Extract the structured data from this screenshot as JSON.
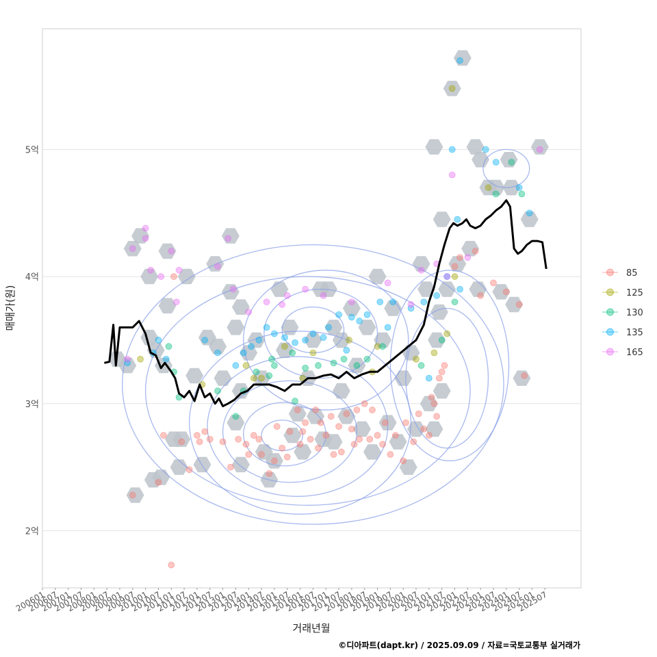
{
  "chart_data": {
    "type": "scatter",
    "title": "",
    "xlabel": "거래년월",
    "ylabel": "매매가(원)",
    "caption": "©디아파트(dapt.kr) / 2025.09.09 / 자료=국토교통부 실거래가",
    "ylim": [
      1.55,
      5.95
    ],
    "y_ticks": [
      {
        "value": 2,
        "label": "2억"
      },
      {
        "value": 3,
        "label": "3억"
      },
      {
        "value": 4,
        "label": "4억"
      },
      {
        "value": 5,
        "label": "5억"
      }
    ],
    "x_ticks": [
      "200601",
      "200607",
      "200701",
      "200707",
      "200801",
      "200807",
      "200901",
      "200907",
      "201001",
      "201007",
      "201101",
      "201107",
      "201201",
      "201207",
      "201301",
      "201307",
      "201401",
      "201407",
      "201501",
      "201507",
      "201601",
      "201607",
      "201701",
      "201707",
      "201801",
      "201807",
      "201901",
      "201907",
      "202001",
      "202007",
      "202101",
      "202107",
      "202201",
      "202207",
      "202301",
      "202307",
      "202401",
      "202407",
      "202501",
      "202507"
    ],
    "legend": [
      {
        "label": "85",
        "color": "#F8766D"
      },
      {
        "label": "125",
        "color": "#A3A500"
      },
      {
        "label": "130",
        "color": "#00BF7D"
      },
      {
        "label": "135",
        "color": "#00B0F6"
      },
      {
        "label": "165",
        "color": "#E76BF3"
      }
    ],
    "median_line": {
      "color": "#000000",
      "x": [
        2008.4,
        2008.6,
        2008.75,
        2008.85,
        2009.0,
        2009.2,
        2009.5,
        2009.75,
        2010.0,
        2010.2,
        2010.4,
        2010.6,
        2010.75,
        2011.0,
        2011.15,
        2011.3,
        2011.5,
        2011.7,
        2011.9,
        2012.1,
        2012.3,
        2012.5,
        2012.7,
        2012.85,
        2013.0,
        2013.2,
        2013.45,
        2013.7,
        2013.95,
        2014.2,
        2014.5,
        2014.8,
        2015.1,
        2015.4,
        2015.7,
        2016.0,
        2016.3,
        2016.6,
        2016.9,
        2017.2,
        2017.5,
        2017.8,
        2018.1,
        2018.4,
        2018.7,
        2019.0,
        2019.3,
        2019.6,
        2019.9,
        2020.2,
        2020.5,
        2020.8,
        2021.0,
        2021.2,
        2021.4,
        2021.6,
        2021.8,
        2021.95,
        2022.1,
        2022.3,
        2022.45,
        2022.6,
        2022.8,
        2023.0,
        2023.2,
        2023.4,
        2023.6,
        2023.8,
        2024.0,
        2024.15,
        2024.3,
        2024.45,
        2024.6,
        2024.8,
        2025.0,
        2025.2,
        2025.4,
        2025.55
      ],
      "y": [
        3.32,
        3.33,
        3.62,
        3.3,
        3.6,
        3.6,
        3.6,
        3.65,
        3.55,
        3.4,
        3.38,
        3.28,
        3.32,
        3.25,
        3.2,
        3.08,
        3.05,
        3.1,
        3.02,
        3.15,
        3.05,
        3.08,
        3.0,
        3.04,
        2.98,
        3.0,
        3.03,
        3.08,
        3.1,
        3.15,
        3.15,
        3.15,
        3.13,
        3.1,
        3.15,
        3.15,
        3.2,
        3.2,
        3.22,
        3.23,
        3.2,
        3.25,
        3.2,
        3.23,
        3.25,
        3.25,
        3.3,
        3.35,
        3.4,
        3.45,
        3.5,
        3.62,
        3.8,
        3.92,
        4.1,
        4.25,
        4.38,
        4.42,
        4.4,
        4.42,
        4.45,
        4.4,
        4.38,
        4.4,
        4.45,
        4.48,
        4.52,
        4.55,
        4.6,
        4.55,
        4.22,
        4.18,
        4.2,
        4.25,
        4.28,
        4.28,
        4.27,
        4.06
      ]
    },
    "hexbins": [
      [
        2008.9,
        3.35
      ],
      [
        2009.3,
        3.3
      ],
      [
        2009.5,
        4.22
      ],
      [
        2009.6,
        2.28
      ],
      [
        2009.8,
        4.32
      ],
      [
        2010.15,
        4.0
      ],
      [
        2010.15,
        3.52
      ],
      [
        2010.4,
        3.42
      ],
      [
        2010.7,
        3.3
      ],
      [
        2010.3,
        2.4
      ],
      [
        2010.6,
        2.42
      ],
      [
        2010.85,
        4.2
      ],
      [
        2010.85,
        3.77
      ],
      [
        2011.1,
        2.72
      ],
      [
        2011.4,
        2.72
      ],
      [
        2011.3,
        2.5
      ],
      [
        2011.6,
        4.0
      ],
      [
        2011.9,
        3.22
      ],
      [
        2012.2,
        2.52
      ],
      [
        2012.4,
        3.52
      ],
      [
        2012.7,
        4.1
      ],
      [
        2012.8,
        3.45
      ],
      [
        2013.0,
        3.2
      ],
      [
        2013.3,
        4.32
      ],
      [
        2013.3,
        3.88
      ],
      [
        2013.5,
        3.6
      ],
      [
        2013.7,
        3.76
      ],
      [
        2013.7,
        3.1
      ],
      [
        2013.5,
        2.85
      ],
      [
        2013.7,
        2.52
      ],
      [
        2014.0,
        3.4
      ],
      [
        2014.3,
        3.5
      ],
      [
        2014.5,
        3.2
      ],
      [
        2014.6,
        2.62
      ],
      [
        2014.8,
        2.4
      ],
      [
        2015.0,
        2.55
      ],
      [
        2015.2,
        3.9
      ],
      [
        2015.4,
        3.42
      ],
      [
        2015.6,
        3.6
      ],
      [
        2015.7,
        2.75
      ],
      [
        2015.9,
        2.92
      ],
      [
        2016.1,
        2.62
      ],
      [
        2016.3,
        3.2
      ],
      [
        2016.5,
        3.5
      ],
      [
        2016.6,
        2.9
      ],
      [
        2016.8,
        3.9
      ],
      [
        2016.9,
        2.72
      ],
      [
        2017.1,
        3.9
      ],
      [
        2017.3,
        3.6
      ],
      [
        2017.3,
        2.7
      ],
      [
        2017.6,
        3.5
      ],
      [
        2017.6,
        3.1
      ],
      [
        2017.8,
        2.9
      ],
      [
        2018.0,
        3.75
      ],
      [
        2018.2,
        3.3
      ],
      [
        2018.4,
        2.8
      ],
      [
        2018.6,
        3.6
      ],
      [
        2018.8,
        2.62
      ],
      [
        2019.0,
        4.0
      ],
      [
        2019.2,
        3.5
      ],
      [
        2019.4,
        2.85
      ],
      [
        2019.6,
        3.75
      ],
      [
        2019.8,
        2.7
      ],
      [
        2020.0,
        3.2
      ],
      [
        2020.2,
        2.5
      ],
      [
        2020.3,
        3.4
      ],
      [
        2020.5,
        2.8
      ],
      [
        2020.7,
        4.1
      ],
      [
        2020.9,
        3.9
      ],
      [
        2021.0,
        3.0
      ],
      [
        2021.2,
        2.8
      ],
      [
        2021.3,
        3.5
      ],
      [
        2021.4,
        3.72
      ],
      [
        2021.5,
        3.1
      ],
      [
        2021.2,
        5.02
      ],
      [
        2021.5,
        4.45
      ],
      [
        2021.7,
        3.9
      ],
      [
        2021.9,
        5.48
      ],
      [
        2022.1,
        4.1
      ],
      [
        2022.3,
        5.72
      ],
      [
        2022.6,
        4.22
      ],
      [
        2022.8,
        5.02
      ],
      [
        2022.9,
        3.9
      ],
      [
        2023.0,
        4.92
      ],
      [
        2023.3,
        4.7
      ],
      [
        2023.6,
        4.7
      ],
      [
        2023.8,
        3.88
      ],
      [
        2024.1,
        4.92
      ],
      [
        2024.2,
        4.7
      ],
      [
        2024.3,
        3.78
      ],
      [
        2024.6,
        3.2
      ],
      [
        2024.9,
        4.45
      ],
      [
        2025.3,
        5.02
      ]
    ],
    "contours": [
      {
        "cx": 2016.0,
        "cy": 2.85,
        "rx": 4.3,
        "ry": 0.72
      },
      {
        "cx": 2015.9,
        "cy": 2.82,
        "rx": 3.5,
        "ry": 0.55
      },
      {
        "cx": 2015.6,
        "cy": 2.78,
        "rx": 2.6,
        "ry": 0.4
      },
      {
        "cx": 2015.4,
        "cy": 2.76,
        "rx": 1.6,
        "ry": 0.25
      },
      {
        "cx": 2015.3,
        "cy": 2.75,
        "rx": 0.8,
        "ry": 0.12
      },
      {
        "cx": 2017.0,
        "cy": 3.5,
        "rx": 3.2,
        "ry": 0.55
      },
      {
        "cx": 2016.8,
        "cy": 3.55,
        "rx": 2.2,
        "ry": 0.35
      },
      {
        "cx": 2016.5,
        "cy": 3.58,
        "rx": 1.2,
        "ry": 0.18
      },
      {
        "cx": 2024.0,
        "cy": 4.85,
        "rx": 0.9,
        "ry": 0.15
      },
      {
        "cx": 2016.5,
        "cy": 3.15,
        "rx": 7.4,
        "ry": 1.1
      },
      {
        "cx": 2016.3,
        "cy": 3.1,
        "rx": 6.3,
        "ry": 0.9
      },
      {
        "cx": 2021.7,
        "cy": 3.2,
        "rx": 1.6,
        "ry": 0.55
      },
      {
        "cx": 2021.8,
        "cy": 3.3,
        "rx": 2.3,
        "ry": 0.75
      }
    ],
    "points": {
      "85": [
        [
          2021.1,
          3.05
        ],
        [
          2021.2,
          3.0
        ],
        [
          2021.4,
          3.2
        ],
        [
          2021.5,
          3.25
        ],
        [
          2021.6,
          3.3
        ],
        [
          2022.0,
          4.08
        ],
        [
          2022.2,
          4.15
        ],
        [
          2011.1,
          4.0
        ],
        [
          2010.5,
          2.38
        ],
        [
          2011.7,
          2.48
        ],
        [
          2013.3,
          2.5
        ],
        [
          2011.0,
          1.73
        ],
        [
          2009.5,
          2.28
        ],
        [
          2024.7,
          3.22
        ],
        [
          2024.5,
          3.78
        ],
        [
          2024.0,
          3.88
        ],
        [
          2023.5,
          3.95
        ],
        [
          2023.0,
          3.85
        ],
        [
          2022.8,
          4.2
        ],
        [
          2012.0,
          2.75
        ],
        [
          2012.5,
          2.72
        ],
        [
          2013.0,
          2.7
        ],
        [
          2020.0,
          2.55
        ],
        [
          2020.4,
          2.7
        ],
        [
          2019.5,
          2.6
        ],
        [
          2019.3,
          2.85
        ],
        [
          2019.0,
          2.75
        ],
        [
          2018.7,
          2.72
        ],
        [
          2018.5,
          3.0
        ],
        [
          2018.2,
          2.95
        ],
        [
          2018.0,
          2.8
        ],
        [
          2017.6,
          2.62
        ],
        [
          2017.3,
          2.6
        ],
        [
          2017.0,
          2.75
        ],
        [
          2016.6,
          2.95
        ],
        [
          2016.2,
          2.85
        ],
        [
          2015.9,
          2.95
        ],
        [
          2015.6,
          2.78
        ],
        [
          2015.3,
          2.65
        ],
        [
          2015.0,
          2.55
        ],
        [
          2014.8,
          2.45
        ],
        [
          2014.5,
          2.6
        ],
        [
          2014.2,
          2.75
        ],
        [
          2013.9,
          2.68
        ],
        [
          2013.6,
          2.72
        ],
        [
          2012.3,
          2.78
        ],
        [
          2012.1,
          2.7
        ],
        [
          2011.4,
          2.7
        ],
        [
          2010.7,
          2.75
        ],
        [
          2016.0,
          2.68
        ],
        [
          2016.4,
          2.72
        ],
        [
          2016.8,
          2.85
        ],
        [
          2017.2,
          2.9
        ],
        [
          2017.8,
          2.92
        ],
        [
          2018.3,
          2.72
        ],
        [
          2018.8,
          2.95
        ],
        [
          2019.2,
          2.68
        ],
        [
          2019.7,
          2.75
        ],
        [
          2020.1,
          2.85
        ],
        [
          2020.6,
          2.92
        ],
        [
          2020.8,
          2.8
        ],
        [
          2021.0,
          2.75
        ],
        [
          2021.3,
          2.9
        ],
        [
          2014.0,
          2.6
        ],
        [
          2014.4,
          2.72
        ],
        [
          2015.1,
          2.82
        ],
        [
          2015.5,
          2.58
        ],
        [
          2016.1,
          2.78
        ],
        [
          2016.7,
          2.65
        ],
        [
          2017.5,
          2.82
        ],
        [
          2018.1,
          2.68
        ]
      ],
      "125": [
        [
          2021.9,
          5.48
        ],
        [
          2023.3,
          4.7
        ],
        [
          2022.0,
          4.0
        ],
        [
          2021.7,
          3.55
        ],
        [
          2021.2,
          3.4
        ],
        [
          2020.5,
          3.35
        ],
        [
          2019.0,
          3.45
        ],
        [
          2018.8,
          3.25
        ],
        [
          2017.9,
          3.5
        ],
        [
          2016.5,
          3.4
        ],
        [
          2015.4,
          3.45
        ],
        [
          2014.5,
          3.2
        ],
        [
          2014.2,
          3.2
        ],
        [
          2012.2,
          3.15
        ],
        [
          2009.8,
          3.35
        ],
        [
          2016.1,
          3.2
        ],
        [
          2013.9,
          3.3
        ]
      ],
      "130": [
        [
          2024.2,
          4.9
        ],
        [
          2024.6,
          4.65
        ],
        [
          2023.6,
          4.65
        ],
        [
          2022.0,
          3.8
        ],
        [
          2021.5,
          3.5
        ],
        [
          2020.7,
          3.3
        ],
        [
          2019.2,
          3.45
        ],
        [
          2018.6,
          3.35
        ],
        [
          2018.2,
          3.3
        ],
        [
          2017.7,
          3.35
        ],
        [
          2016.7,
          3.3
        ],
        [
          2016.2,
          3.28
        ],
        [
          2015.7,
          3.4
        ],
        [
          2015.0,
          3.3
        ],
        [
          2014.8,
          3.22
        ],
        [
          2014.3,
          3.25
        ],
        [
          2013.8,
          3.1
        ],
        [
          2013.5,
          2.9
        ],
        [
          2012.8,
          3.1
        ],
        [
          2011.3,
          3.05
        ],
        [
          2011.1,
          3.25
        ],
        [
          2010.9,
          3.45
        ],
        [
          2015.8,
          3.02
        ],
        [
          2014.9,
          3.35
        ],
        [
          2017.3,
          3.32
        ]
      ],
      "135": [
        [
          2022.2,
          5.7
        ],
        [
          2021.9,
          5.0
        ],
        [
          2023.2,
          5.0
        ],
        [
          2023.6,
          4.9
        ],
        [
          2024.5,
          4.7
        ],
        [
          2024.9,
          4.5
        ],
        [
          2022.1,
          4.45
        ],
        [
          2022.2,
          3.9
        ],
        [
          2021.7,
          4.0
        ],
        [
          2021.3,
          3.85
        ],
        [
          2020.8,
          3.8
        ],
        [
          2020.3,
          3.75
        ],
        [
          2019.6,
          3.8
        ],
        [
          2019.1,
          3.8
        ],
        [
          2018.6,
          3.7
        ],
        [
          2018.3,
          3.65
        ],
        [
          2018.0,
          3.68
        ],
        [
          2017.5,
          3.7
        ],
        [
          2017.1,
          3.6
        ],
        [
          2016.5,
          3.55
        ],
        [
          2016.2,
          3.5
        ],
        [
          2015.8,
          3.48
        ],
        [
          2015.4,
          3.52
        ],
        [
          2015.0,
          3.55
        ],
        [
          2014.7,
          3.6
        ],
        [
          2014.4,
          3.5
        ],
        [
          2014.1,
          3.45
        ],
        [
          2013.8,
          3.4
        ],
        [
          2013.5,
          3.3
        ],
        [
          2012.8,
          3.4
        ],
        [
          2012.3,
          3.5
        ],
        [
          2010.5,
          3.5
        ],
        [
          2010.3,
          3.4
        ],
        [
          2010.8,
          3.35
        ],
        [
          2009.3,
          3.32
        ],
        [
          2021.0,
          3.2
        ],
        [
          2019.4,
          3.6
        ],
        [
          2017.8,
          3.42
        ],
        [
          2016.9,
          3.52
        ]
      ],
      "165": [
        [
          2025.3,
          5.0
        ],
        [
          2021.9,
          4.8
        ],
        [
          2010.0,
          4.38
        ],
        [
          2013.2,
          4.3
        ],
        [
          2011.0,
          4.2
        ],
        [
          2009.5,
          4.22
        ],
        [
          2010.0,
          4.3
        ],
        [
          2010.2,
          4.05
        ],
        [
          2010.6,
          4.0
        ],
        [
          2011.3,
          4.05
        ],
        [
          2012.8,
          4.08
        ],
        [
          2013.4,
          3.9
        ],
        [
          2014.0,
          3.72
        ],
        [
          2014.7,
          3.8
        ],
        [
          2015.5,
          3.85
        ],
        [
          2016.2,
          3.9
        ],
        [
          2016.9,
          3.85
        ],
        [
          2018.0,
          3.8
        ],
        [
          2019.4,
          3.95
        ],
        [
          2020.3,
          3.78
        ],
        [
          2020.7,
          4.05
        ],
        [
          2021.3,
          4.1
        ],
        [
          2021.7,
          4.0
        ],
        [
          2022.5,
          4.15
        ],
        [
          2009.3,
          3.35
        ],
        [
          2011.2,
          3.8
        ],
        [
          2015.3,
          3.78
        ]
      ]
    }
  }
}
